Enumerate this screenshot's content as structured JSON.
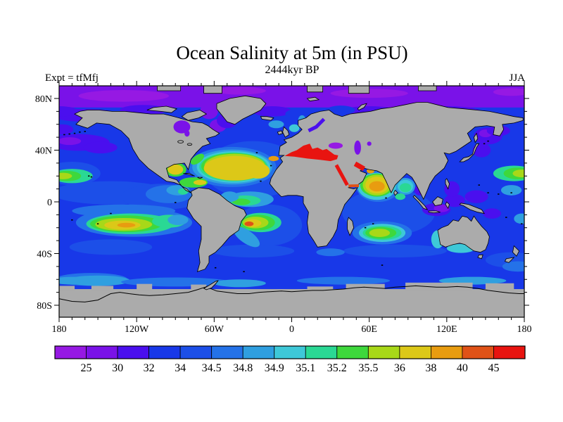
{
  "title": "Ocean Salinity at 5m (in PSU)",
  "subtitle": "2444kyr BP",
  "annotations": {
    "experiment_label": "Expt = tfMfj",
    "season_label": "JJA"
  },
  "axes": {
    "x": {
      "tick_labels": [
        "180",
        "120W",
        "60W",
        "0",
        "60E",
        "120E",
        "180"
      ],
      "tick_lons": [
        -180,
        -120,
        -60,
        0,
        60,
        120,
        180
      ],
      "minor_step_deg": 10
    },
    "y": {
      "tick_labels": [
        "80N",
        "40N",
        "0",
        "40S",
        "80S"
      ],
      "tick_lats": [
        80,
        40,
        0,
        -40,
        -80
      ],
      "minor_step_deg": 10
    }
  },
  "colorbar": {
    "boundary_labels": [
      "25",
      "30",
      "32",
      "34",
      "34.5",
      "34.8",
      "34.9",
      "35.1",
      "35.2",
      "35.5",
      "36",
      "38",
      "40",
      "45"
    ],
    "segment_colors": [
      "#9619E3",
      "#7A12E8",
      "#4A0FEE",
      "#1838E8",
      "#1C4FE8",
      "#2472E8",
      "#2F9FE0",
      "#3EC8D8",
      "#2AD894",
      "#3ED83C",
      "#A8D818",
      "#DCC818",
      "#E89C10",
      "#E05217",
      "#E81410"
    ]
  },
  "map": {
    "land_color": "#ABABAB",
    "coast_color": "#000000",
    "frame_color": "#000000",
    "ocean_base_color": "#1838E8"
  },
  "chart_data": {
    "type": "heatmap",
    "title": "Ocean Salinity at 5m (in PSU)",
    "subtitle": "2444kyr BP",
    "experiment": "Expt = tfMfj",
    "season": "JJA",
    "units": "PSU",
    "projection": "equirectangular world map, filled contours over gray land mask",
    "x_range_deg_lon": [
      -180,
      180
    ],
    "y_range_deg_lat": [
      -90,
      90
    ],
    "x_tick_labels": [
      "180",
      "120W",
      "60W",
      "0",
      "60E",
      "120E",
      "180"
    ],
    "y_tick_labels": [
      "80N",
      "40N",
      "0",
      "40S",
      "80S"
    ],
    "colorbar_levels_psu": [
      25,
      30,
      32,
      34,
      34.5,
      34.8,
      34.9,
      35.1,
      35.2,
      35.5,
      36,
      38,
      40,
      45
    ],
    "colorbar_colors": [
      "#9619E3",
      "#7A12E8",
      "#4A0FEE",
      "#1838E8",
      "#1C4FE8",
      "#2472E8",
      "#2F9FE0",
      "#3EC8D8",
      "#2AD894",
      "#3ED83C",
      "#A8D818",
      "#DCC818",
      "#E89C10",
      "#E05217",
      "#E81410"
    ],
    "legend_position": "bottom horizontal colorbar",
    "grid": false,
    "regions": [
      {
        "name": "Arctic Ocean",
        "approx_salinity_psu": "25-30"
      },
      {
        "name": "Hudson Bay",
        "approx_salinity_psu": "25-30"
      },
      {
        "name": "North Pacific (40-55N)",
        "approx_salinity_psu": "30-34"
      },
      {
        "name": "North Atlantic subtropical gyre",
        "approx_salinity_psu": "36-38"
      },
      {
        "name": "Gulf of Mexico / Caribbean",
        "approx_salinity_psu": "35.5-38"
      },
      {
        "name": "Mediterranean Sea",
        "approx_salinity_psu": ">45"
      },
      {
        "name": "Black Sea / Caspian Sea",
        "approx_salinity_psu": "<30"
      },
      {
        "name": "Red Sea / Persian Gulf",
        "approx_salinity_psu": ">45"
      },
      {
        "name": "Arabian Sea",
        "approx_salinity_psu": "36-40"
      },
      {
        "name": "Bay of Bengal",
        "approx_salinity_psu": "34.9-35.2"
      },
      {
        "name": "Indonesian seas",
        "approx_salinity_psu": "25-32"
      },
      {
        "name": "North Pacific subtropical gyre (date line)",
        "approx_salinity_psu": "35.2-36"
      },
      {
        "name": "South Pacific subtropical gyre",
        "approx_salinity_psu": "35.5-40"
      },
      {
        "name": "South Atlantic subtropical gyre",
        "approx_salinity_psu": "35.5-45"
      },
      {
        "name": "South Indian subtropical gyre",
        "approx_salinity_psu": "35.2-36"
      },
      {
        "name": "Equatorial Pacific",
        "approx_salinity_psu": "34-35.1"
      },
      {
        "name": "Southern Ocean",
        "approx_salinity_psu": "32-34.9"
      },
      {
        "name": "Antarctica / land",
        "approx_salinity_psu": "masked gray"
      }
    ]
  }
}
